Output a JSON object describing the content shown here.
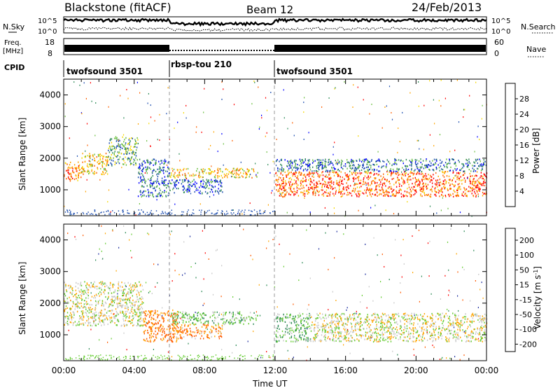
{
  "header": {
    "station": "Blackstone (fitACF)",
    "beam": "Beam 12",
    "date": "24/Feb/2013"
  },
  "noise_panel": {
    "left_label": "N.Sky",
    "right_label": "N.Search",
    "left_ticks": [
      "10^5",
      "10^0"
    ],
    "right_ticks": [
      "10^5",
      "10^0"
    ]
  },
  "freq_panel": {
    "left_label_line1": "Freq.",
    "left_label_line2": "[MHz]",
    "right_label": "Nave",
    "left_ticks": [
      "18",
      "8"
    ],
    "right_ticks": [
      "60",
      "0"
    ]
  },
  "cpid_panel": {
    "label": "CPID",
    "segments": [
      {
        "name": "twofsound 3501",
        "start": 0,
        "end": 6
      },
      {
        "name": "rbsp-tou 210",
        "start": 6,
        "end": 12
      },
      {
        "name": "twofsound 3501",
        "start": 12,
        "end": 24
      }
    ]
  },
  "colors": {
    "power": [
      "#0000ff",
      "#1f4fb0",
      "#2e8b57",
      "#6cbf40",
      "#f5d800",
      "#ffa500",
      "#ff6000",
      "#ff0000"
    ],
    "velocity": [
      "#ff0000",
      "#ff5a00",
      "#ffa500",
      "#c8c8c8",
      "#c8c8c8",
      "#66cc33",
      "#2e8b57",
      "#1f2fa0"
    ]
  },
  "chart_data": [
    {
      "type": "heatmap",
      "title": "Power",
      "ylabel": "Slant Range [km]",
      "ylim": [
        180,
        4500
      ],
      "xlim": [
        0,
        24
      ],
      "yticks": [
        "1000",
        "2000",
        "3000",
        "4000"
      ],
      "colorbar_label": "Power [dB]",
      "colorbar_ticks": [
        "4",
        "8",
        "12",
        "16",
        "20",
        "24",
        "28"
      ],
      "bands": [
        {
          "x0": 0.0,
          "x1": 1.0,
          "y0": 1300,
          "y1": 1900,
          "value": 24
        },
        {
          "x0": 1.0,
          "x1": 2.5,
          "y0": 1500,
          "y1": 2200,
          "value": 20
        },
        {
          "x0": 2.5,
          "x1": 4.2,
          "y0": 1800,
          "y1": 2700,
          "value": 12
        },
        {
          "x0": 4.2,
          "x1": 6.0,
          "y0": 800,
          "y1": 2000,
          "value": 8
        },
        {
          "x0": 6.0,
          "x1": 11.0,
          "y0": 1400,
          "y1": 1700,
          "value": 20
        },
        {
          "x0": 6.0,
          "x1": 9.0,
          "y0": 900,
          "y1": 1350,
          "value": 6
        },
        {
          "x0": 12.0,
          "x1": 24.0,
          "y0": 800,
          "y1": 1600,
          "value": 26
        },
        {
          "x0": 12.0,
          "x1": 24.0,
          "y0": 1600,
          "y1": 2000,
          "value": 8
        }
      ]
    },
    {
      "type": "heatmap",
      "title": "Velocity",
      "ylabel": "Slant Range [km]",
      "ylim": [
        180,
        4500
      ],
      "xlim": [
        0,
        24
      ],
      "yticks": [
        "1000",
        "2000",
        "3000",
        "4000"
      ],
      "xticks": [
        "00:00",
        "04:00",
        "08:00",
        "12:00",
        "16:00",
        "20:00",
        "00:00"
      ],
      "xlabel": "Time UT",
      "colorbar_label": "Velocity [m s^-1]",
      "colorbar_ticks": [
        "200",
        "100",
        "50",
        "15",
        "-15",
        "-50",
        "-100",
        "-200"
      ],
      "bands": [
        {
          "x0": 0.0,
          "x1": 4.5,
          "y0": 1300,
          "y1": 2700,
          "value": 0
        },
        {
          "x0": 4.5,
          "x1": 6.5,
          "y0": 800,
          "y1": 1800,
          "value": -60
        },
        {
          "x0": 6.0,
          "x1": 11.0,
          "y0": 1350,
          "y1": 1750,
          "value": 30
        },
        {
          "x0": 6.0,
          "x1": 9.0,
          "y0": 900,
          "y1": 1350,
          "value": -50
        },
        {
          "x0": 12.0,
          "x1": 14.0,
          "y0": 800,
          "y1": 1700,
          "value": 40
        },
        {
          "x0": 14.0,
          "x1": 24.0,
          "y0": 800,
          "y1": 1700,
          "value": 0
        }
      ]
    }
  ]
}
